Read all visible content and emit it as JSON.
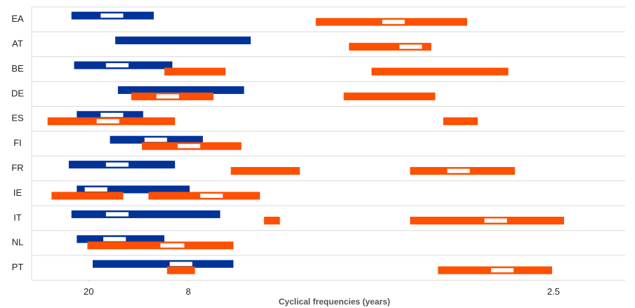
{
  "chart_data": {
    "type": "range-bar",
    "x_label": "Cyclical frequencies (years)",
    "categories": [
      "EA",
      "AT",
      "BE",
      "DE",
      "ES",
      "FI",
      "FR",
      "IE",
      "IT",
      "NL",
      "PT"
    ],
    "xlim": [
      0.007,
      0.454
    ],
    "xticks": [
      {
        "value": 0.05,
        "label": "20"
      },
      {
        "value": 0.125,
        "label": "8"
      },
      {
        "value": 0.4,
        "label": "2.5"
      }
    ],
    "grid": true,
    "series": [
      {
        "color": "#003399",
        "ranges": [
          [
            [
              0.037,
              0.099
            ]
          ],
          [
            [
              0.07,
              0.172
            ]
          ],
          [
            [
              0.039,
              0.113
            ]
          ],
          [
            [
              0.072,
              0.167
            ]
          ],
          [
            [
              0.041,
              0.091
            ]
          ],
          [
            [
              0.066,
              0.136
            ]
          ],
          [
            [
              0.035,
              0.115
            ]
          ],
          [
            [
              0.041,
              0.126
            ]
          ],
          [
            [
              0.037,
              0.149
            ]
          ],
          [
            [
              0.041,
              0.107
            ]
          ],
          [
            [
              0.053,
              0.159
            ]
          ]
        ],
        "markers": [
          [
            [
              0.059,
              0.076
            ]
          ],
          [],
          [
            [
              0.063,
              0.08
            ]
          ],
          [],
          [
            [
              0.059,
              0.076
            ]
          ],
          [
            [
              0.092,
              0.109
            ]
          ],
          [
            [
              0.063,
              0.08
            ]
          ],
          [
            [
              0.047,
              0.064
            ]
          ],
          [
            [
              0.063,
              0.08
            ]
          ],
          [
            [
              0.061,
              0.078
            ]
          ],
          [
            [
              0.111,
              0.128
            ]
          ]
        ]
      },
      {
        "color": "#ff4f00",
        "ranges": [
          [
            [
              0.221,
              0.335
            ]
          ],
          [
            [
              0.246,
              0.308
            ]
          ],
          [
            [
              0.107,
              0.153
            ],
            [
              0.263,
              0.366
            ]
          ],
          [
            [
              0.082,
              0.144
            ],
            [
              0.242,
              0.311
            ]
          ],
          [
            [
              0.019,
              0.115
            ],
            [
              0.317,
              0.343
            ]
          ],
          [
            [
              0.09,
              0.165
            ]
          ],
          [
            [
              0.157,
              0.209
            ],
            [
              0.292,
              0.371
            ]
          ],
          [
            [
              0.022,
              0.076
            ],
            [
              0.095,
              0.179
            ]
          ],
          [
            [
              0.182,
              0.194
            ],
            [
              0.292,
              0.408
            ]
          ],
          [
            [
              0.049,
              0.159
            ]
          ],
          [
            [
              0.109,
              0.13
            ],
            [
              0.313,
              0.399
            ]
          ]
        ],
        "markers": [
          [
            [
              0.271,
              0.288
            ]
          ],
          [
            [
              0.284,
              0.301
            ]
          ],
          [],
          [
            [
              0.101,
              0.118
            ]
          ],
          [
            [
              0.056,
              0.073
            ]
          ],
          [
            [
              0.117,
              0.134
            ]
          ],
          [
            [
              0.32,
              0.337
            ]
          ],
          [
            [
              0.134,
              0.151
            ]
          ],
          [
            [
              0.348,
              0.365
            ]
          ],
          [
            [
              0.104,
              0.122
            ]
          ],
          [
            [
              0.353,
              0.37
            ]
          ]
        ]
      }
    ]
  }
}
